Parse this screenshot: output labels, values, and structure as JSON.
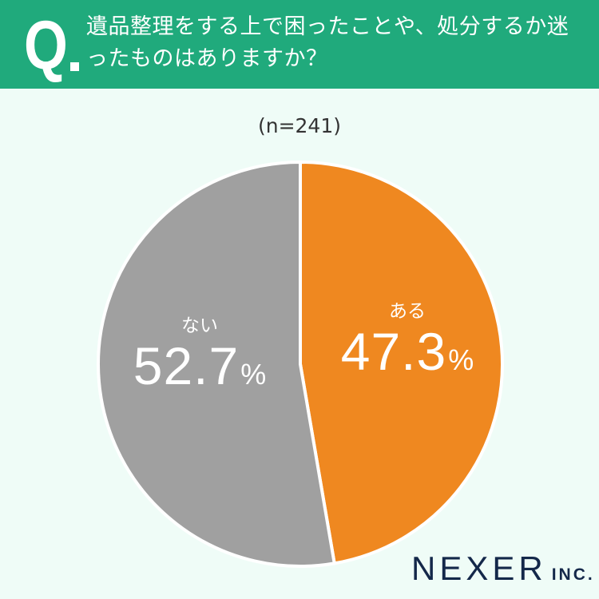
{
  "header": {
    "q_mark": "Q",
    "title": "遺品整理をする上で困ったことや、処分するか迷ったものはありますか？",
    "bg_color": "#20aa7c"
  },
  "sample_size_label": "(n=241)",
  "slices": [
    {
      "label": "ある",
      "value": "47.3",
      "percent_sign": "%",
      "color": "#ef8820"
    },
    {
      "label": "ない",
      "value": "52.7",
      "percent_sign": "%",
      "color": "#a0a0a0"
    }
  ],
  "logo": {
    "name": "NEXER",
    "suffix": "INC."
  },
  "chart_data": {
    "type": "pie",
    "title": "遺品整理をする上で困ったことや、処分するか迷ったものはありますか？",
    "subtitle": "(n=241)",
    "categories": [
      "ある",
      "ない"
    ],
    "values": [
      47.3,
      52.7
    ],
    "unit": "%",
    "colors": [
      "#ef8820",
      "#a0a0a0"
    ],
    "start_angle": "12 o'clock, clockwise",
    "legend": "none (labels on slices)"
  }
}
